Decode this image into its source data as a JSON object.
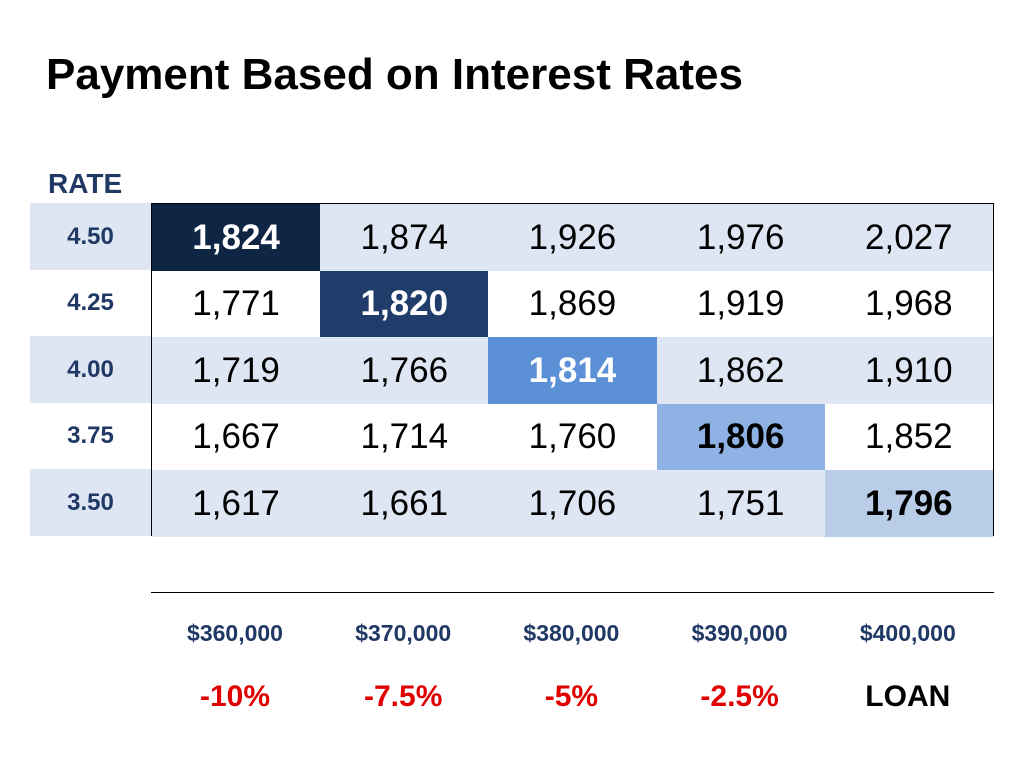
{
  "title": "Payment Based on Interest Rates",
  "colors": {
    "row_shade": "#dde6f2",
    "highlight_dark": "#0f2544",
    "highlight_navy": "#1f3c6a",
    "highlight_mid": "#5b8fd6",
    "highlight_light": "#8db2e3",
    "highlight_pale": "#b9cde8",
    "percent_red": "#e00000",
    "label_navy": "#1f3864"
  },
  "chart_data": {
    "type": "table",
    "title": "Payment Based on Interest Rates",
    "row_header": "RATE",
    "rows": [
      "4.50",
      "4.25",
      "4.00",
      "3.75",
      "3.50"
    ],
    "columns": [
      "$360,000",
      "$370,000",
      "$380,000",
      "$390,000",
      "$400,000"
    ],
    "column_change": [
      "-10%",
      "-7.5%",
      "-5%",
      "-2.5%",
      "LOAN"
    ],
    "values": [
      [
        "1,824",
        "1,874",
        "1,926",
        "1,976",
        "2,027"
      ],
      [
        "1,771",
        "1,820",
        "1,869",
        "1,919",
        "1,968"
      ],
      [
        "1,719",
        "1,766",
        "1,814",
        "1,862",
        "1,910"
      ],
      [
        "1,667",
        "1,714",
        "1,760",
        "1,806",
        "1,852"
      ],
      [
        "1,617",
        "1,661",
        "1,706",
        "1,751",
        "1,796"
      ]
    ],
    "highlighted": [
      {
        "row": 0,
        "col": 0,
        "color": "#0f2544",
        "text": "#ffffff"
      },
      {
        "row": 1,
        "col": 1,
        "color": "#1f3c6a",
        "text": "#ffffff"
      },
      {
        "row": 2,
        "col": 2,
        "color": "#5b8fd6",
        "text": "#ffffff"
      },
      {
        "row": 3,
        "col": 3,
        "color": "#8db2e3",
        "text": "#000000"
      },
      {
        "row": 4,
        "col": 4,
        "color": "#b9cde8",
        "text": "#000000"
      }
    ]
  }
}
